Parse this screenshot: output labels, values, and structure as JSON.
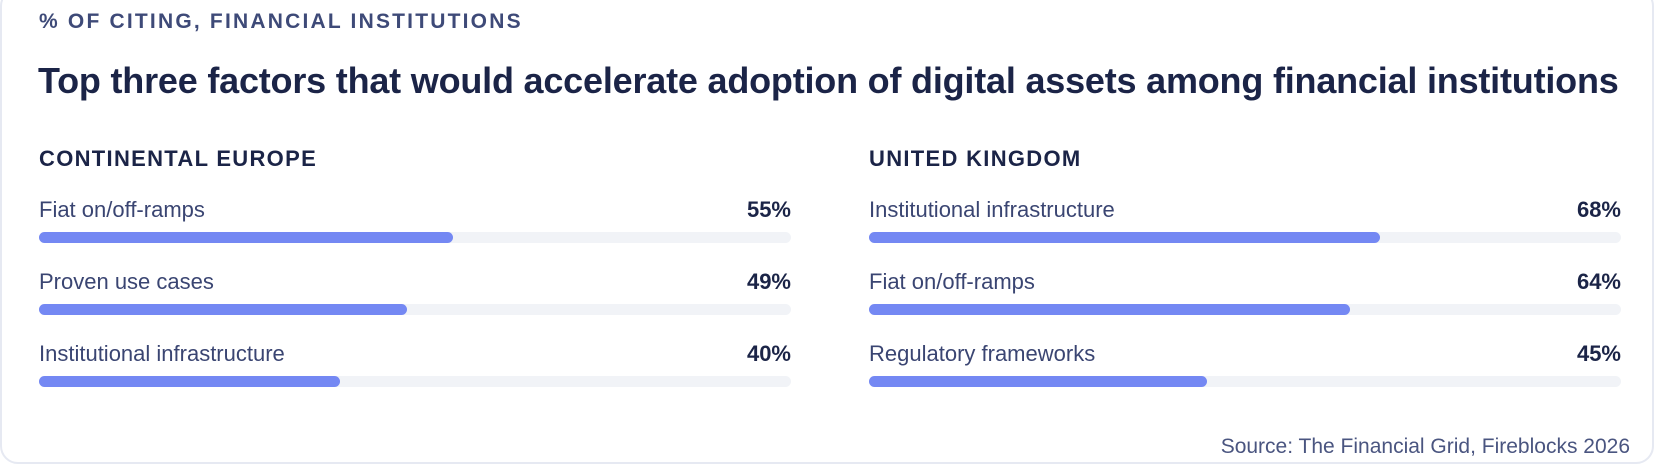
{
  "eyebrow": "% OF CITING, FINANCIAL INSTITUTIONS",
  "title": "Top three factors that would accelerate adoption of digital assets among financial institutions",
  "source": "Source: The Financial Grid, Fireblocks 2026",
  "colors": {
    "bar_fill": "#7488f3",
    "bar_track": "#f1f3f7",
    "text_dark": "#1b2447"
  },
  "chart_data": [
    {
      "type": "bar",
      "orientation": "horizontal",
      "title": "CONTINENTAL EUROPE",
      "xlim": [
        0,
        100
      ],
      "categories": [
        "Fiat on/off-ramps",
        "Proven use cases",
        "Institutional infrastructure"
      ],
      "values": [
        55,
        49,
        40
      ],
      "value_labels": [
        "55%",
        "49%",
        "40%"
      ]
    },
    {
      "type": "bar",
      "orientation": "horizontal",
      "title": "UNITED KINGDOM",
      "xlim": [
        0,
        100
      ],
      "categories": [
        "Institutional infrastructure",
        "Fiat on/off-ramps",
        "Regulatory frameworks"
      ],
      "values": [
        68,
        64,
        45
      ],
      "value_labels": [
        "68%",
        "64%",
        "45%"
      ]
    }
  ]
}
